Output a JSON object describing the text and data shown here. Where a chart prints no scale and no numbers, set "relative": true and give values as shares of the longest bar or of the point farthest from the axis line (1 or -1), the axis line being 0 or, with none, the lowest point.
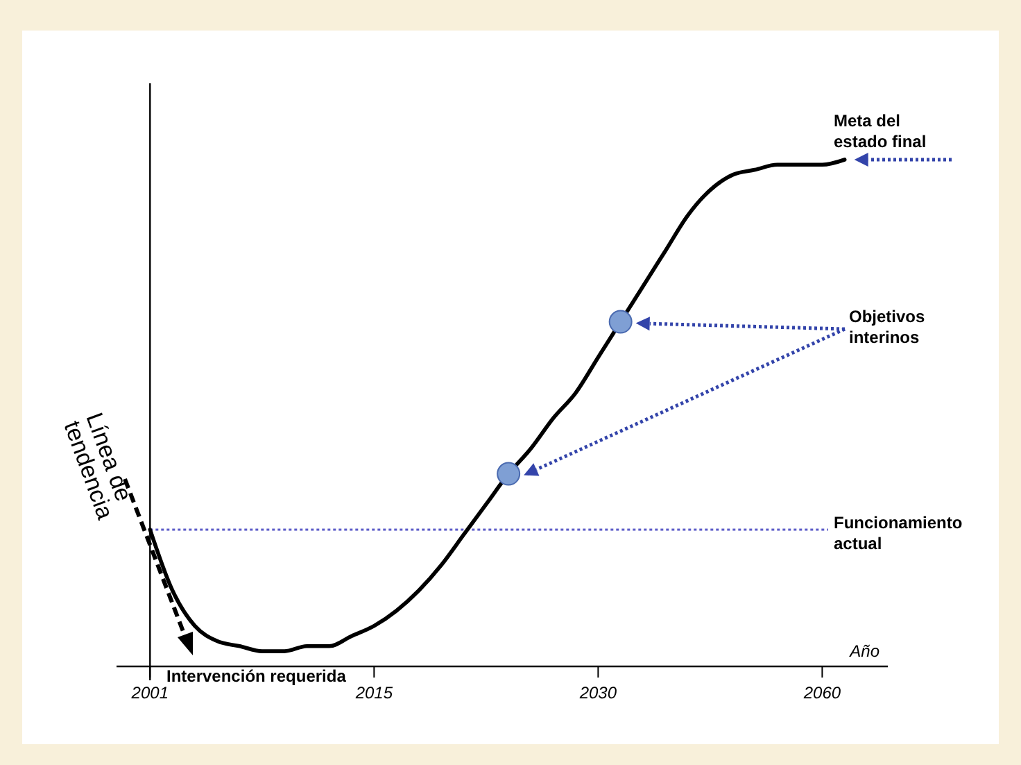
{
  "chart_data": {
    "type": "line",
    "relative": true,
    "xlabel": "Año",
    "categories": [
      null,
      "2001",
      null,
      null,
      null,
      null,
      null,
      null,
      null,
      null,
      null,
      "2015",
      null,
      null,
      null,
      null,
      null,
      null,
      null,
      null,
      null,
      "2030",
      null,
      null,
      null,
      null,
      null,
      null,
      null,
      null,
      null,
      "2060",
      null,
      null
    ],
    "series": [
      {
        "color": "#000000",
        "line_style": "solid",
        "values": [
          null,
          0.27,
          0.15,
          0.08,
          0.05,
          0.04,
          0.03,
          0.03,
          0.04,
          0.04,
          0.06,
          0.08,
          0.11,
          0.15,
          0.2,
          0.26,
          0.32,
          0.38,
          0.43,
          0.49,
          0.54,
          0.61,
          0.68,
          0.75,
          0.82,
          0.89,
          0.94,
          0.97,
          0.98,
          0.99,
          0.99,
          0.99,
          1,
          null
        ]
      },
      {
        "type": "scatter",
        "color": "#7f9fd4",
        "marker": "circle",
        "values": [
          null,
          null,
          null,
          null,
          null,
          null,
          null,
          null,
          null,
          null,
          null,
          null,
          null,
          null,
          null,
          null,
          null,
          0.38,
          null,
          null,
          null,
          null,
          0.68,
          null,
          null,
          null,
          null,
          null,
          null,
          null,
          null,
          null,
          null,
          null
        ]
      }
    ],
    "ref_lines": [
      {
        "axis": "y",
        "value": 0.27,
        "label": "Funcionamiento actual",
        "color": "#5a5ac8",
        "line_style": "dotted"
      }
    ],
    "annotations": [
      "Meta del estado final",
      "Objetivos interinos",
      "Intervención requerida",
      "Línea de tendencia"
    ]
  }
}
